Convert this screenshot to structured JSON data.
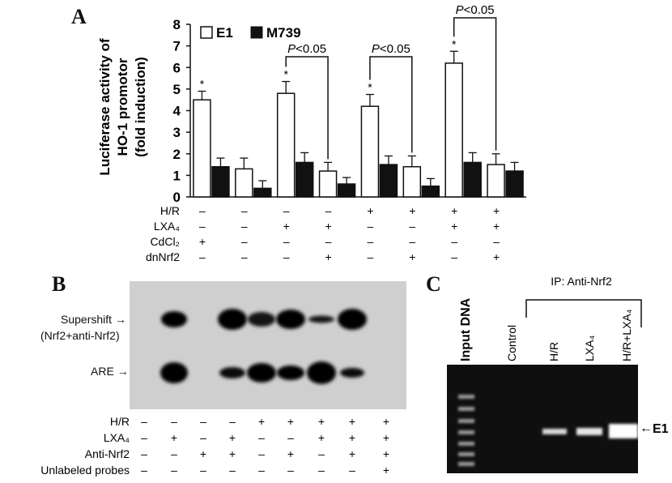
{
  "panelA": {
    "letter": "A",
    "ylabel_lines": [
      "Luciferase activity of",
      "HO-1 promotor",
      "(fold induction)"
    ],
    "legend": [
      {
        "label": "E1",
        "color": "#ffffff"
      },
      {
        "label": "M739",
        "color": "#111111"
      }
    ],
    "significance_labels": [
      "P<0.05",
      "P<0.05",
      "P<0.05"
    ],
    "star": "*",
    "treat_rows": [
      {
        "label": "H/R",
        "marks": [
          "–",
          "–",
          "–",
          "–",
          "+",
          "+",
          "+",
          "+"
        ]
      },
      {
        "label": "LXA₄",
        "marks": [
          "–",
          "–",
          "+",
          "+",
          "–",
          "–",
          "+",
          "+"
        ]
      },
      {
        "label": "CdCl₂",
        "marks": [
          "+",
          "–",
          "–",
          "–",
          "–",
          "–",
          "–",
          "–"
        ]
      },
      {
        "label": "dnNrf2",
        "marks": [
          "–",
          "–",
          "–",
          "+",
          "–",
          "+",
          "–",
          "+"
        ]
      }
    ]
  },
  "chart_data": {
    "type": "bar",
    "ylabel": "Luciferase activity of HO-1 promotor (fold induction)",
    "ylim": [
      0,
      8
    ],
    "yticks": [
      "0",
      "1",
      "2",
      "3",
      "4",
      "5",
      "6",
      "7",
      "8"
    ],
    "groups": 8,
    "series": [
      {
        "name": "E1",
        "values": [
          4.5,
          1.3,
          4.8,
          1.2,
          4.2,
          1.4,
          6.2,
          1.5
        ],
        "errors": [
          0.4,
          0.5,
          0.55,
          0.4,
          0.55,
          0.5,
          0.55,
          0.5
        ]
      },
      {
        "name": "M739",
        "values": [
          1.4,
          0.4,
          1.6,
          0.6,
          1.5,
          0.5,
          1.6,
          1.2
        ],
        "errors": [
          0.4,
          0.35,
          0.45,
          0.3,
          0.4,
          0.35,
          0.45,
          0.4
        ]
      }
    ],
    "stars_on_e1_groups": [
      0,
      2,
      4,
      6
    ]
  },
  "panelB": {
    "letter": "B",
    "supershift_label": "Supershift",
    "supershift_sublabel": "(Nrf2+anti-Nrf2)",
    "are_label": "ARE",
    "arrow": "→",
    "treat_rows": [
      {
        "label": "H/R",
        "marks": [
          "–",
          "–",
          "–",
          "–",
          "+",
          "+",
          "+",
          "+",
          "+"
        ]
      },
      {
        "label": "LXA₄",
        "marks": [
          "–",
          "+",
          "–",
          "+",
          "–",
          "–",
          "+",
          "+",
          "+"
        ]
      },
      {
        "label": "Anti-Nrf2",
        "marks": [
          "–",
          "–",
          "+",
          "+",
          "–",
          "+",
          "–",
          "+",
          "+"
        ]
      },
      {
        "label": "Unlabeled probes",
        "marks": [
          "–",
          "–",
          "–",
          "–",
          "–",
          "–",
          "–",
          "–",
          "+"
        ]
      }
    ]
  },
  "panelC": {
    "letter": "C",
    "ip_label": "IP: Anti-Nrf2",
    "lane_labels": [
      "Input DNA",
      "Control",
      "H/R",
      "LXA₄",
      "H/R+LXA₄"
    ],
    "band_label": "E1"
  }
}
